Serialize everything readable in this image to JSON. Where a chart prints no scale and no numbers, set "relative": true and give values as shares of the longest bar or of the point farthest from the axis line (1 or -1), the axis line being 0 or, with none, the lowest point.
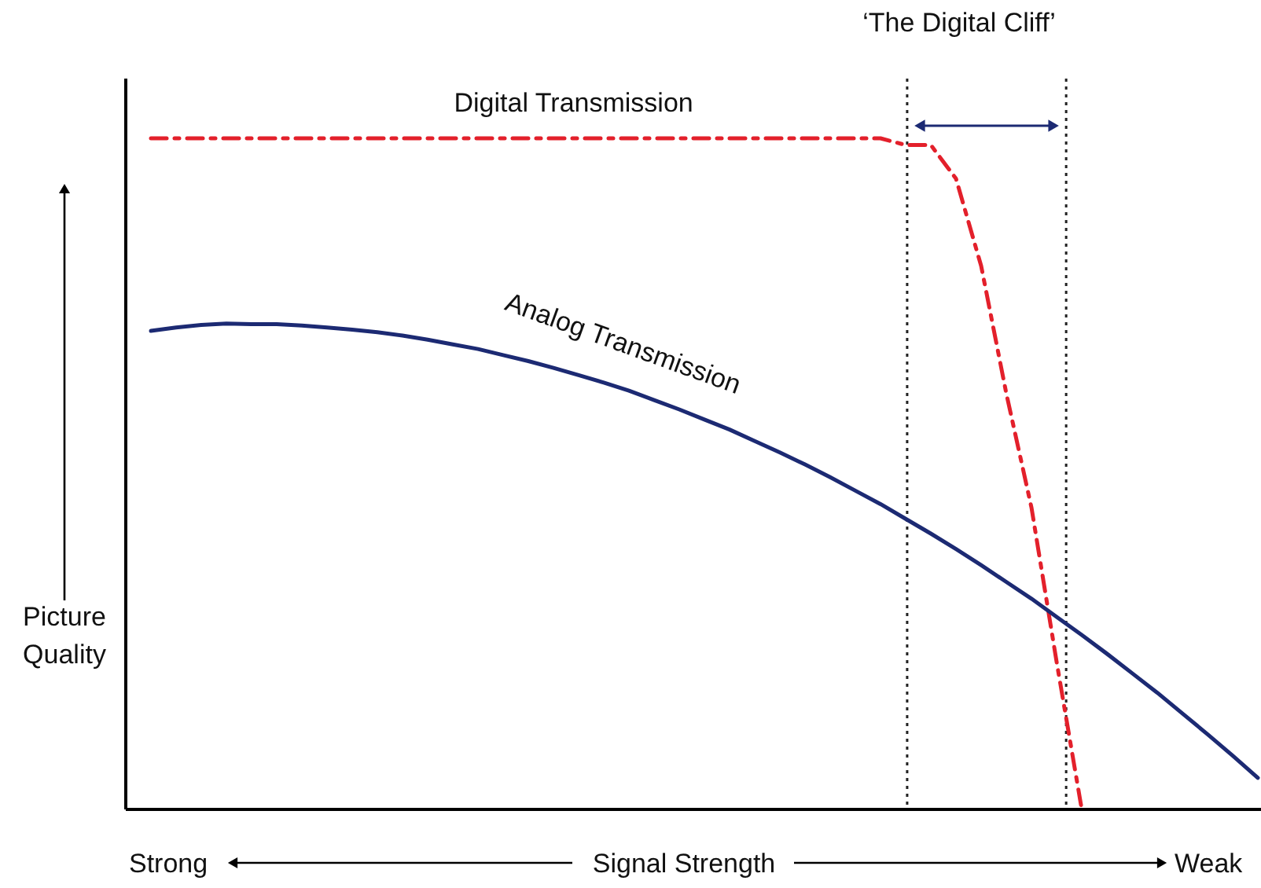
{
  "chart_data": {
    "type": "line",
    "relative": true,
    "marker": "none",
    "xlabel": "Signal Strength",
    "ylabel": "Picture Quality",
    "categories": [
      null,
      null,
      null,
      null,
      null,
      null,
      null,
      null,
      null,
      null,
      null,
      null,
      null,
      null,
      null,
      null,
      null,
      null,
      null,
      null,
      null,
      null,
      null,
      null,
      null,
      null,
      null,
      null,
      null,
      null,
      null,
      null,
      null,
      null,
      null,
      null,
      null,
      null,
      null,
      null,
      null,
      null,
      null,
      null,
      null
    ],
    "series": [
      {
        "name": "Digital Transmission",
        "color": "#e3202b",
        "line_style": "dashed",
        "values": [
          1.0,
          1.0,
          1.0,
          1.0,
          1.0,
          1.0,
          1.0,
          1.0,
          1.0,
          1.0,
          1.0,
          1.0,
          1.0,
          1.0,
          1.0,
          1.0,
          1.0,
          1.0,
          1.0,
          1.0,
          1.0,
          1.0,
          1.0,
          1.0,
          1.0,
          1.0,
          1.0,
          1.0,
          1.0,
          1.0,
          0.99,
          0.99,
          0.94,
          0.81,
          0.62,
          0.45,
          0.22,
          0.0,
          null,
          null,
          null,
          null,
          null,
          null,
          null
        ]
      },
      {
        "name": "Analog Transmission",
        "color": "#1c2a73",
        "line_style": "solid",
        "values": [
          0.713,
          0.718,
          0.722,
          0.724,
          0.723,
          0.723,
          0.721,
          0.718,
          0.715,
          0.711,
          0.706,
          0.7,
          0.693,
          0.686,
          0.677,
          0.668,
          0.658,
          0.647,
          0.636,
          0.624,
          0.61,
          0.596,
          0.581,
          0.566,
          0.549,
          0.532,
          0.514,
          0.495,
          0.475,
          0.455,
          0.433,
          0.411,
          0.388,
          0.364,
          0.339,
          0.314,
          0.287,
          0.26,
          0.232,
          0.203,
          0.174,
          0.143,
          0.112,
          0.08,
          0.047
        ]
      }
    ],
    "annotations": [
      "‘The Digital Cliff’",
      "Strong",
      "Weak"
    ]
  }
}
